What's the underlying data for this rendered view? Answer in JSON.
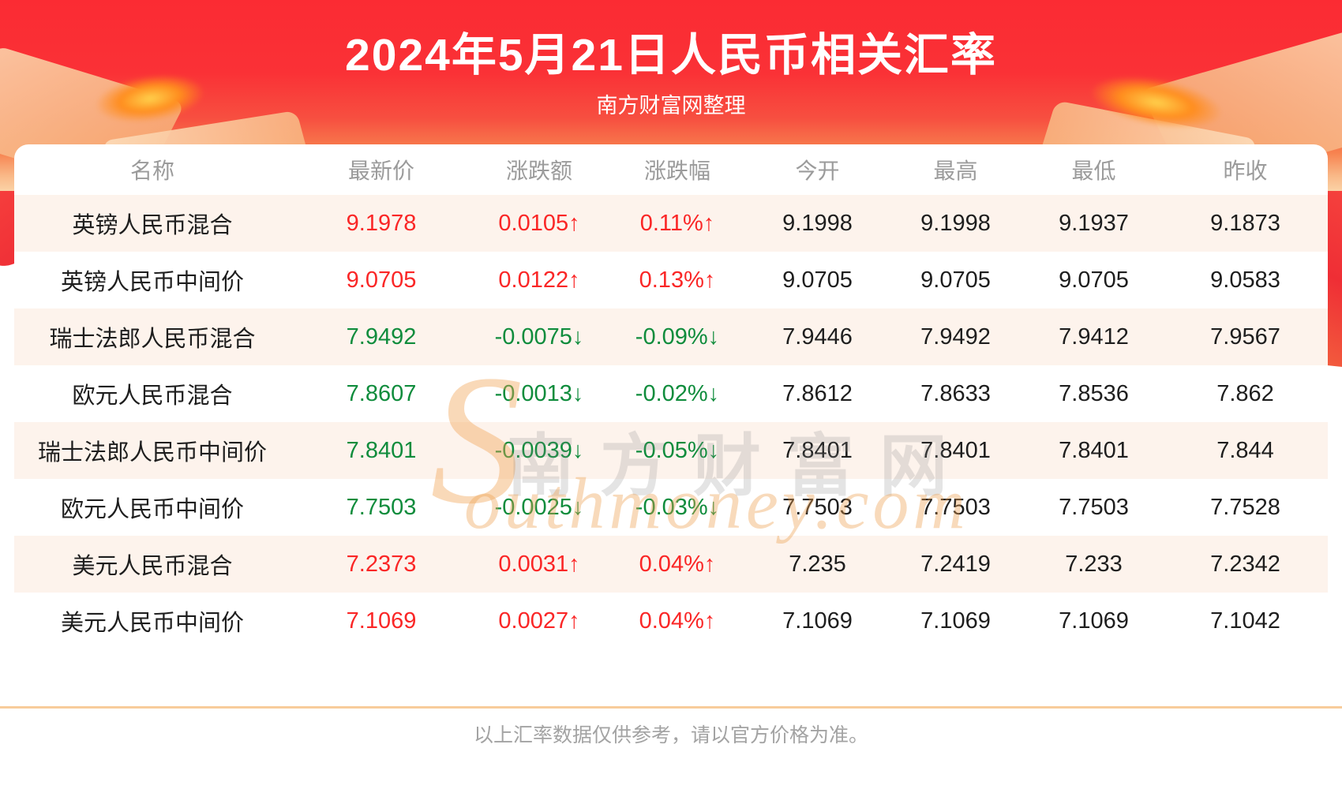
{
  "header": {
    "title": "2024年5月21日人民币相关汇率",
    "subtitle": "南方财富网整理"
  },
  "table": {
    "columns": [
      "名称",
      "最新价",
      "涨跌额",
      "涨跌幅",
      "今开",
      "最高",
      "最低",
      "昨收"
    ],
    "rows": [
      {
        "name": "英镑人民币混合",
        "last": "9.1978",
        "change": "0.0105↑",
        "pct": "0.11%↑",
        "open": "9.1998",
        "high": "9.1998",
        "low": "9.1937",
        "prev": "9.1873",
        "dir": "up"
      },
      {
        "name": "英镑人民币中间价",
        "last": "9.0705",
        "change": "0.0122↑",
        "pct": "0.13%↑",
        "open": "9.0705",
        "high": "9.0705",
        "low": "9.0705",
        "prev": "9.0583",
        "dir": "up"
      },
      {
        "name": "瑞士法郎人民币混合",
        "last": "7.9492",
        "change": "-0.0075↓",
        "pct": "-0.09%↓",
        "open": "7.9446",
        "high": "7.9492",
        "low": "7.9412",
        "prev": "7.9567",
        "dir": "down"
      },
      {
        "name": "欧元人民币混合",
        "last": "7.8607",
        "change": "-0.0013↓",
        "pct": "-0.02%↓",
        "open": "7.8612",
        "high": "7.8633",
        "low": "7.8536",
        "prev": "7.862",
        "dir": "down"
      },
      {
        "name": "瑞士法郎人民币中间价",
        "last": "7.8401",
        "change": "-0.0039↓",
        "pct": "-0.05%↓",
        "open": "7.8401",
        "high": "7.8401",
        "low": "7.8401",
        "prev": "7.844",
        "dir": "down"
      },
      {
        "name": "欧元人民币中间价",
        "last": "7.7503",
        "change": "-0.0025↓",
        "pct": "-0.03%↓",
        "open": "7.7503",
        "high": "7.7503",
        "low": "7.7503",
        "prev": "7.7528",
        "dir": "down"
      },
      {
        "name": "美元人民币混合",
        "last": "7.2373",
        "change": "0.0031↑",
        "pct": "0.04%↑",
        "open": "7.235",
        "high": "7.2419",
        "low": "7.233",
        "prev": "7.2342",
        "dir": "up"
      },
      {
        "name": "美元人民币中间价",
        "last": "7.1069",
        "change": "0.0027↑",
        "pct": "0.04%↑",
        "open": "7.1069",
        "high": "7.1069",
        "low": "7.1069",
        "prev": "7.1042",
        "dir": "up"
      }
    ]
  },
  "watermark": {
    "s": "S",
    "cn": "南方财富网",
    "en": "outhmoney.com"
  },
  "footer": {
    "note": "以上汇率数据仅供参考，请以官方价格为准。"
  },
  "colors": {
    "accent_red": "#f92d33",
    "up": "#fa2626",
    "down": "#0f8c3c",
    "row_alt": "#fdf3ec",
    "divider": "#f8cc9b",
    "header_text": "#9b9b9b",
    "watermark_orange": "#eda04f"
  }
}
